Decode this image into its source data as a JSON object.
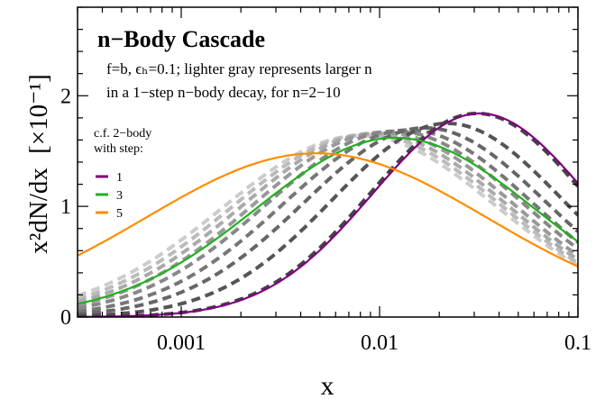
{
  "chart_data": {
    "type": "line",
    "title": "n−Body Cascade",
    "annotations": [
      "f=b, ϵₕ=0.1; lighter gray represents larger n",
      "in a 1−step n−body decay, for n=2−10"
    ],
    "xlabel": "x",
    "ylabel_main": "x²dN/dx",
    "ylabel_unit": "[×10⁻¹]",
    "xscale": "log",
    "xlim": [
      0.0003,
      0.1
    ],
    "ylim": [
      0,
      2.8
    ],
    "x_ticks": [
      {
        "value": 0.001,
        "label": "0.001"
      },
      {
        "value": 0.01,
        "label": "0.01"
      },
      {
        "value": 0.1,
        "label": "0.1"
      }
    ],
    "y_ticks": [
      {
        "value": 0,
        "label": "0"
      },
      {
        "value": 1,
        "label": "1"
      },
      {
        "value": 2,
        "label": "2"
      }
    ],
    "legend": {
      "title_lines": [
        "c.f. 2−body",
        "with step:"
      ],
      "placement": "middle-left"
    },
    "series": [
      {
        "name": "1",
        "style": "solid",
        "color": "#800080",
        "peak_x": 0.032,
        "peak_y": 1.84,
        "width": 0.54,
        "in_legend": true
      },
      {
        "name": "3",
        "style": "solid",
        "color": "#22b01e",
        "peak_x": 0.012,
        "peak_y": 1.62,
        "width": 0.7,
        "in_legend": true
      },
      {
        "name": "5",
        "style": "solid",
        "color": "#ff8c00",
        "peak_x": 0.0048,
        "peak_y": 1.48,
        "width": 0.86,
        "in_legend": true
      },
      {
        "label": "n=2",
        "style": "dashed",
        "color": "#444444",
        "peak_x": 0.031,
        "peak_y": 1.84,
        "width": 0.54
      },
      {
        "label": "n=3",
        "style": "dashed",
        "color": "#555555",
        "peak_x": 0.022,
        "peak_y": 1.75,
        "width": 0.58
      },
      {
        "label": "n=4",
        "style": "dashed",
        "color": "#666666",
        "peak_x": 0.017,
        "peak_y": 1.71,
        "width": 0.61
      },
      {
        "label": "n=5",
        "style": "dashed",
        "color": "#777777",
        "peak_x": 0.014,
        "peak_y": 1.69,
        "width": 0.63
      },
      {
        "label": "n=6",
        "style": "dashed",
        "color": "#888888",
        "peak_x": 0.012,
        "peak_y": 1.68,
        "width": 0.65
      },
      {
        "label": "n=7",
        "style": "dashed",
        "color": "#999999",
        "peak_x": 0.0105,
        "peak_y": 1.67,
        "width": 0.66
      },
      {
        "label": "n=8",
        "style": "dashed",
        "color": "#aaaaaa",
        "peak_x": 0.0095,
        "peak_y": 1.66,
        "width": 0.67
      },
      {
        "label": "n=9",
        "style": "dashed",
        "color": "#bbbbbb",
        "peak_x": 0.0087,
        "peak_y": 1.65,
        "width": 0.68
      },
      {
        "label": "n=10",
        "style": "dashed",
        "color": "#cccccc",
        "peak_x": 0.008,
        "peak_y": 1.64,
        "width": 0.69
      }
    ]
  }
}
